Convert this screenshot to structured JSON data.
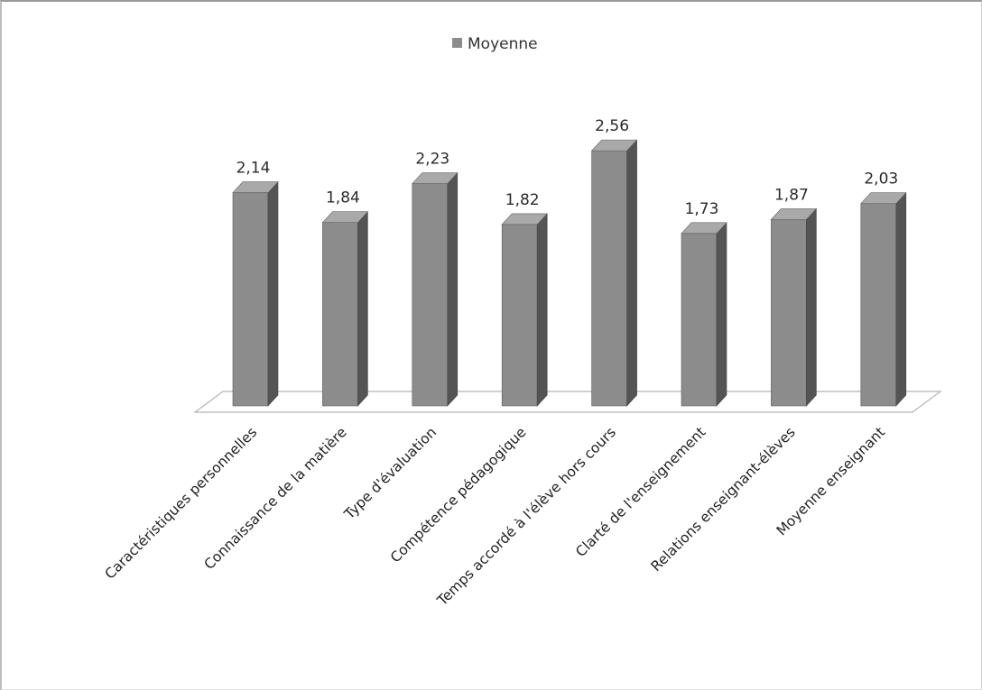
{
  "chart_data": {
    "type": "bar",
    "categories": [
      "Caractéristiques personnelles",
      "Connaissance de la matière",
      "Type d'évaluation",
      "Compétence pédagogique",
      "Temps accordé à l'élève hors cours",
      "Clarté de l'enseignement",
      "Relations enseignant-élèves",
      "Moyenne enseignant"
    ],
    "series": [
      {
        "name": "Moyenne",
        "values": [
          2.14,
          1.84,
          2.23,
          1.82,
          2.56,
          1.73,
          1.87,
          2.03
        ],
        "value_labels": [
          "2,14",
          "1,84",
          "2,23",
          "1,82",
          "2,56",
          "1,73",
          "1,87",
          "2,03"
        ],
        "color": "#8c8c8c"
      }
    ],
    "title": "",
    "xlabel": "",
    "ylabel": "",
    "ylim": [
      0,
      3
    ],
    "grid": false,
    "legend_position": "top-center",
    "style": "3d-column"
  }
}
